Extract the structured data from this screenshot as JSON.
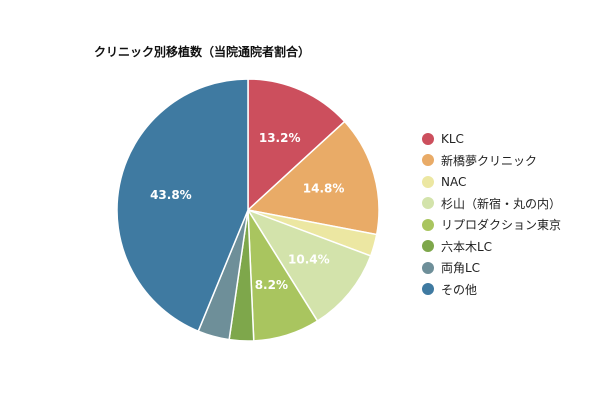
{
  "chart_data": {
    "type": "pie",
    "title": "クリニック別移植数（当院通院者割合）",
    "legend_position": "right",
    "slices": [
      {
        "label": "KLC",
        "value": 13.2,
        "color": "#cc4f5d",
        "show_label": true
      },
      {
        "label": "新橋夢クリニック",
        "value": 14.8,
        "color": "#e9ab67",
        "show_label": true
      },
      {
        "label": "NAC",
        "value": 2.7,
        "color": "#ece7a2",
        "show_label": false
      },
      {
        "label": "杉山（新宿・丸の内）",
        "value": 10.4,
        "color": "#d3e3ab",
        "show_label": true
      },
      {
        "label": "リプロダクション東京",
        "value": 8.2,
        "color": "#a9c55f",
        "show_label": true
      },
      {
        "label": "六本木LC",
        "value": 3.0,
        "color": "#7ea74b",
        "show_label": false
      },
      {
        "label": "両角LC",
        "value": 3.9,
        "color": "#6e8f99",
        "show_label": false
      },
      {
        "label": "その他",
        "value": 43.8,
        "color": "#3f7aa1",
        "show_label": true
      }
    ]
  }
}
